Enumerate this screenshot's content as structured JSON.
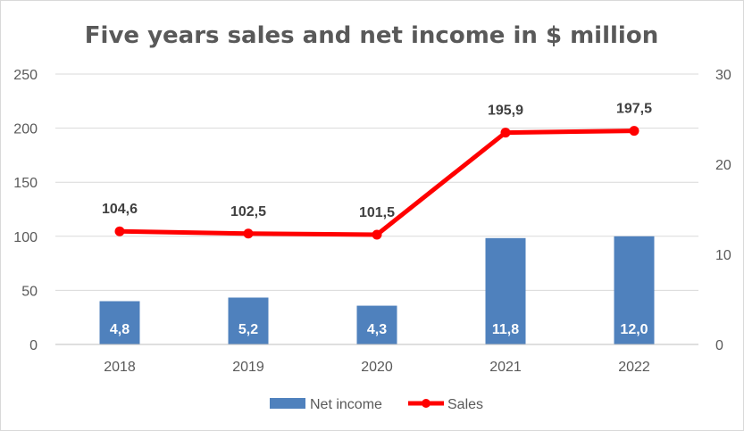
{
  "chart_data": {
    "type": "bar",
    "title": "Five years sales and net income in $ million",
    "categories": [
      "2018",
      "2019",
      "2020",
      "2021",
      "2022"
    ],
    "series": [
      {
        "name": "Net income",
        "chart_type": "bar",
        "axis": "right",
        "values": [
          4.8,
          5.2,
          4.3,
          11.8,
          12.0
        ],
        "labels": [
          "4,8",
          "5,2",
          "4,3",
          "11,8",
          "12,0"
        ],
        "color": "#4f81bd"
      },
      {
        "name": "Sales",
        "chart_type": "line",
        "axis": "left",
        "values": [
          104.6,
          102.5,
          101.5,
          195.9,
          197.5
        ],
        "labels": [
          "104,6",
          "102,5",
          "101,5",
          "195,9",
          "197,5"
        ],
        "color": "#ff0000"
      }
    ],
    "y_left": {
      "ylim": [
        0,
        250
      ],
      "ticks": [
        "0",
        "50",
        "100",
        "150",
        "200",
        "250"
      ]
    },
    "y_right": {
      "ylim": [
        0,
        30
      ],
      "ticks": [
        "0",
        "10",
        "20",
        "30"
      ]
    },
    "grid": true,
    "legend_position": "bottom"
  }
}
